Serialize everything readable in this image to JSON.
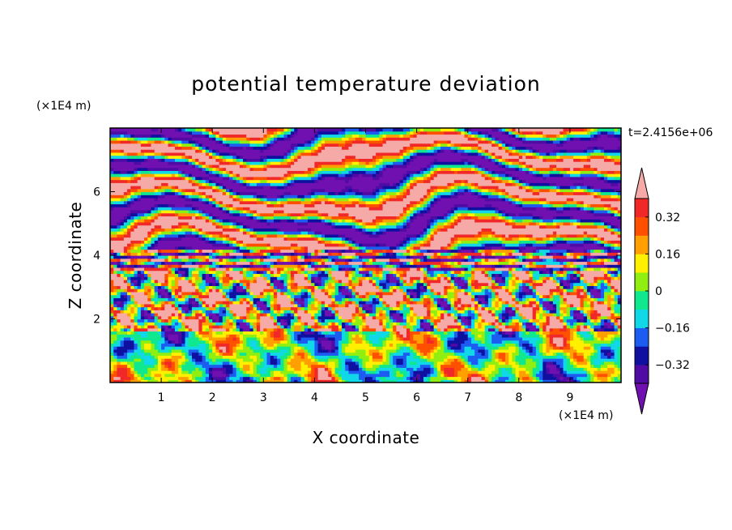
{
  "chart_data": {
    "type": "heatmap",
    "title": "potential temperature deviation",
    "xlabel": "X coordinate",
    "ylabel": "Z coordinate",
    "x_unit": "(×1E4 m)",
    "y_unit": "(×1E4 m)",
    "time_label": "t=2.4156e+06",
    "xlim": [
      0,
      10
    ],
    "ylim": [
      0,
      8
    ],
    "x_ticks": [
      1,
      2,
      3,
      4,
      5,
      6,
      7,
      8,
      9
    ],
    "y_ticks": [
      2,
      4,
      6
    ],
    "colorbar": {
      "min": -0.4,
      "max": 0.4,
      "step": 0.08,
      "tick_values": [
        0.32,
        0.16,
        0,
        -0.16,
        -0.32
      ],
      "tick_labels": [
        "0.32",
        "0.16",
        "0",
        "−0.16",
        "−0.32"
      ],
      "colors": [
        "#4f0ba4",
        "#1010a0",
        "#1d5cf0",
        "#10d8e8",
        "#10e890",
        "#90ee10",
        "#fff000",
        "#ffa000",
        "#ff5000",
        "#f02828"
      ],
      "over_color": "#f6aaa8",
      "under_color": "#7010b0"
    }
  }
}
